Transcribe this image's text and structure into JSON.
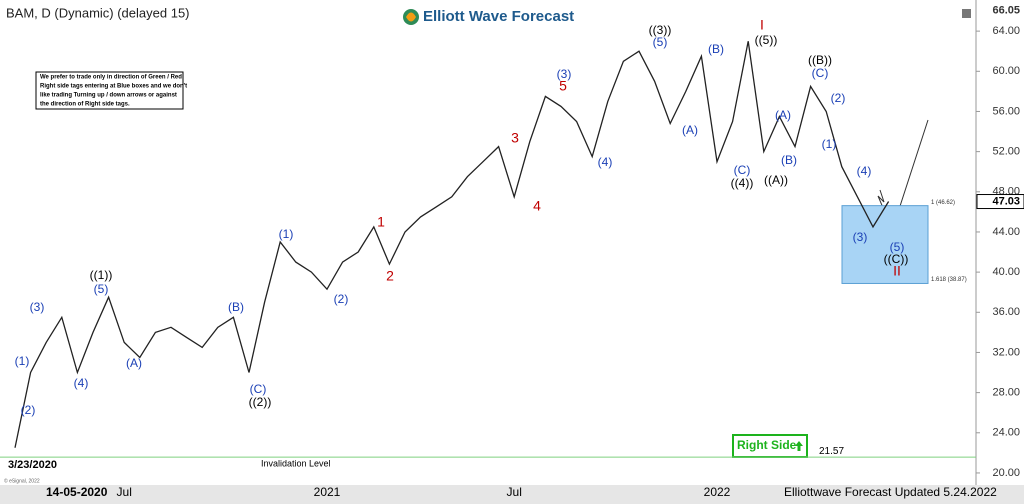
{
  "chart_data": {
    "type": "line",
    "title": "BAM, D (Dynamic) (delayed 15)",
    "logo": "Elliott Wave Forecast",
    "note": [
      "We prefer to trade only in direction of Green / Red",
      "Right side tags entering at Blue boxes and we don't",
      "like trading Turning up / down arrows or against",
      "the direction of Right side tags."
    ],
    "categories": [
      null,
      null,
      null,
      null,
      null,
      null,
      null,
      "Jul",
      null,
      null,
      null,
      null,
      null,
      null,
      null,
      null,
      null,
      null,
      null,
      null,
      "2021",
      null,
      null,
      null,
      null,
      null,
      null,
      null,
      null,
      null,
      null,
      null,
      "Jul",
      null,
      null,
      null,
      null,
      null,
      null,
      null,
      null,
      null,
      null,
      null,
      null,
      "2022",
      null,
      null,
      null,
      null,
      null,
      null,
      null,
      null,
      null,
      null,
      null
    ],
    "values": [
      22.5,
      30,
      33,
      35.5,
      30,
      34,
      37.5,
      33,
      31.5,
      34,
      34.5,
      33.5,
      32.5,
      34.5,
      35.5,
      30,
      37,
      43,
      41,
      40,
      38.3,
      41,
      42,
      44.5,
      40.8,
      44,
      45.5,
      46.5,
      47.5,
      49.5,
      51,
      52.5,
      47.5,
      53,
      57.5,
      56.5,
      55,
      51.5,
      57,
      61,
      62,
      59,
      54.8,
      58,
      61.5,
      51,
      55,
      63,
      52,
      55.5,
      52.5,
      58.5,
      56,
      50.5,
      47.5,
      44.5,
      47.03
    ],
    "color": "#222222",
    "ylim": [
      18.8,
      67.1
    ],
    "yticks": [
      {
        "value": 20,
        "label": "20.00"
      },
      {
        "value": 24,
        "label": "24.00"
      },
      {
        "value": 28,
        "label": "28.00"
      },
      {
        "value": 32,
        "label": "32.00"
      },
      {
        "value": 36,
        "label": "36.00"
      },
      {
        "value": 40,
        "label": "40.00"
      },
      {
        "value": 44,
        "label": "44.00"
      },
      {
        "value": 48,
        "label": "48.00"
      },
      {
        "value": 52,
        "label": "52.00"
      },
      {
        "value": 56,
        "label": "56.00"
      },
      {
        "value": 60,
        "label": "60.00"
      },
      {
        "value": 64,
        "label": "64.00"
      }
    ],
    "top_price": {
      "value": 66.05,
      "label": "66.05"
    },
    "last_price": {
      "value": 47.03,
      "label": "47.03"
    },
    "zone_top": {
      "value": 46.62,
      "label": "1 (46.62)"
    },
    "zone_bottom": {
      "value": 38.87,
      "label": "1.618 (38.87)"
    },
    "invalidation": {
      "value": 21.57,
      "label": "21.57"
    },
    "invalidation_text": "Invalidation Level",
    "start_date": "3/23/2020",
    "right_side": "Right Side",
    "cursor_date": "14-05-2020",
    "footer": "Elliottwave Forecast Updated 5.24.2022",
    "copyright": "© eSignal, 2022",
    "waves": [
      "(1)",
      "(2)",
      "(3)",
      "(4)",
      "(5)",
      "((1))",
      "(A)",
      "(B)",
      "(C)",
      "((2))",
      "(1)",
      "(2)",
      "1",
      "2",
      "3",
      "4",
      "(3)",
      "5",
      "(4)",
      "((3))",
      "(5)",
      "(A)",
      "(B)",
      "I",
      "((5))",
      "(C)",
      "((4))",
      "(A)",
      "(B)",
      "((A))",
      "((B))",
      "(C)",
      "(2)",
      "(1)",
      "(4)",
      "(3)",
      "(5)",
      "((C))",
      "II"
    ]
  }
}
